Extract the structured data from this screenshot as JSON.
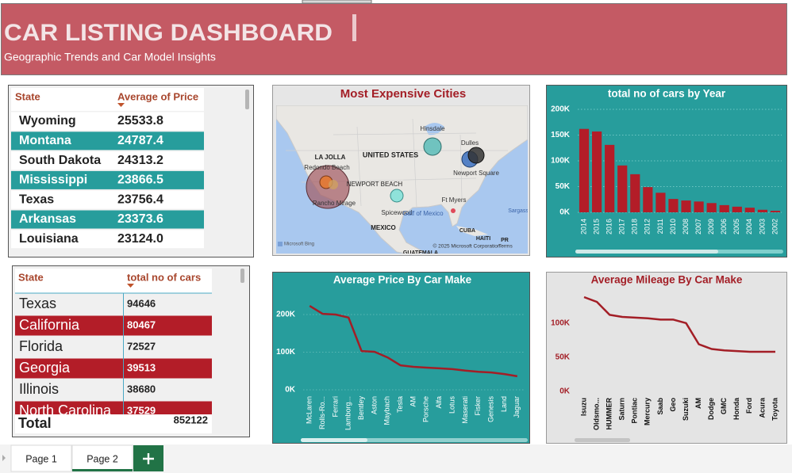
{
  "header": {
    "title": "CAR LISTING DASHBOARD",
    "subtitle": "Geographic Trends and Car Model Insights"
  },
  "price_table": {
    "columns": [
      "State",
      "Average of Price"
    ],
    "rows": [
      [
        "Wyoming",
        "25533.8"
      ],
      [
        "Montana",
        "24787.4"
      ],
      [
        "South Dakota",
        "24313.2"
      ],
      [
        "Mississippi",
        "23866.5"
      ],
      [
        "Texas",
        "23756.4"
      ],
      [
        "Arkansas",
        "23373.6"
      ],
      [
        "Louisiana",
        "23124.0"
      ]
    ]
  },
  "count_table": {
    "columns": [
      "State",
      "total no of cars"
    ],
    "rows": [
      [
        "Texas",
        94646
      ],
      [
        "California",
        80467
      ],
      [
        "Florida",
        72527
      ],
      [
        "Georgia",
        39513
      ],
      [
        "Illinois",
        38680
      ],
      [
        "North Carolina",
        37529
      ]
    ],
    "total": [
      "Total",
      852122
    ]
  },
  "map": {
    "title": "Most Expensive Cities",
    "labels": [
      "Hinsdale",
      "LA JOLLA",
      "UNITED STATES",
      "Dulles",
      "Redondo Beach",
      "NEWPORT BEACH",
      "Newport Square",
      "Rancho Mirage",
      "Ft Myers",
      "Spicewood",
      "Gulf of Mexico",
      "MEXICO",
      "CUBA",
      "HAITI",
      "PR",
      "Sargasso",
      "GUATEMALA"
    ],
    "credits": [
      "Microsoft Bing",
      "© 2025 Microsoft Corporation",
      "Terms"
    ]
  },
  "chart_data": [
    {
      "type": "bar",
      "title": "total no of cars by Year",
      "categories": [
        "2014",
        "2015",
        "2016",
        "2017",
        "2018",
        "2012",
        "2011",
        "2010",
        "2008",
        "2007",
        "2009",
        "2006",
        "2005",
        "2004",
        "2003",
        "2002"
      ],
      "values": [
        162000,
        157000,
        131000,
        91000,
        74000,
        49000,
        38000,
        26000,
        23000,
        21000,
        18000,
        14000,
        11000,
        9000,
        5000,
        3000
      ],
      "color": "#b31d28",
      "ylim": [
        0,
        200000
      ],
      "yticks": [
        {
          "value": 0,
          "label": "0K"
        },
        {
          "value": 50000,
          "label": "50K"
        },
        {
          "value": 100000,
          "label": "100K"
        },
        {
          "value": 150000,
          "label": "150K"
        },
        {
          "value": 200000,
          "label": "200K"
        }
      ],
      "grid": true
    },
    {
      "type": "line",
      "title": "Average Price By Car Make",
      "categories": [
        "McLaren",
        "Rolls-Ro...",
        "Ferrari",
        "Lamborg...",
        "Bentley",
        "Aston",
        "Maybach",
        "Tesla",
        "AM",
        "Porsche",
        "Alfa",
        "Lotus",
        "Maserati",
        "Fisker",
        "Genesis",
        "Land",
        "Jaguar"
      ],
      "values": [
        223000,
        202000,
        200000,
        192000,
        103000,
        101000,
        86000,
        65000,
        61000,
        59000,
        57000,
        55000,
        51000,
        48000,
        46000,
        42000,
        36000
      ],
      "color": "#a31e26",
      "ylim": [
        0,
        240000
      ],
      "yticks": [
        {
          "value": 0,
          "label": "0K"
        },
        {
          "value": 100000,
          "label": "100K"
        },
        {
          "value": 200000,
          "label": "200K"
        }
      ],
      "grid": true
    },
    {
      "type": "line",
      "title": "Average Mileage By Car Make",
      "categories": [
        "Isuzu",
        "Oldsmo...",
        "HUMMER",
        "Saturn",
        "Pontiac",
        "Mercury",
        "Saab",
        "Geo",
        "Suzuki",
        "AM",
        "Dodge",
        "GMC",
        "Honda",
        "Ford",
        "Acura",
        "Toyota"
      ],
      "values": [
        138000,
        131000,
        112000,
        109000,
        108000,
        107000,
        105000,
        105000,
        100000,
        69000,
        62000,
        60000,
        59000,
        58000,
        58000,
        58000
      ],
      "color": "#a31e26",
      "ylim": [
        0,
        160000
      ],
      "yticks": [
        {
          "value": 0,
          "label": "0K"
        },
        {
          "value": 50000,
          "label": "50K"
        },
        {
          "value": 100000,
          "label": "100K"
        }
      ],
      "grid": false
    }
  ],
  "tabs": [
    "Page 1",
    "Page 2"
  ]
}
